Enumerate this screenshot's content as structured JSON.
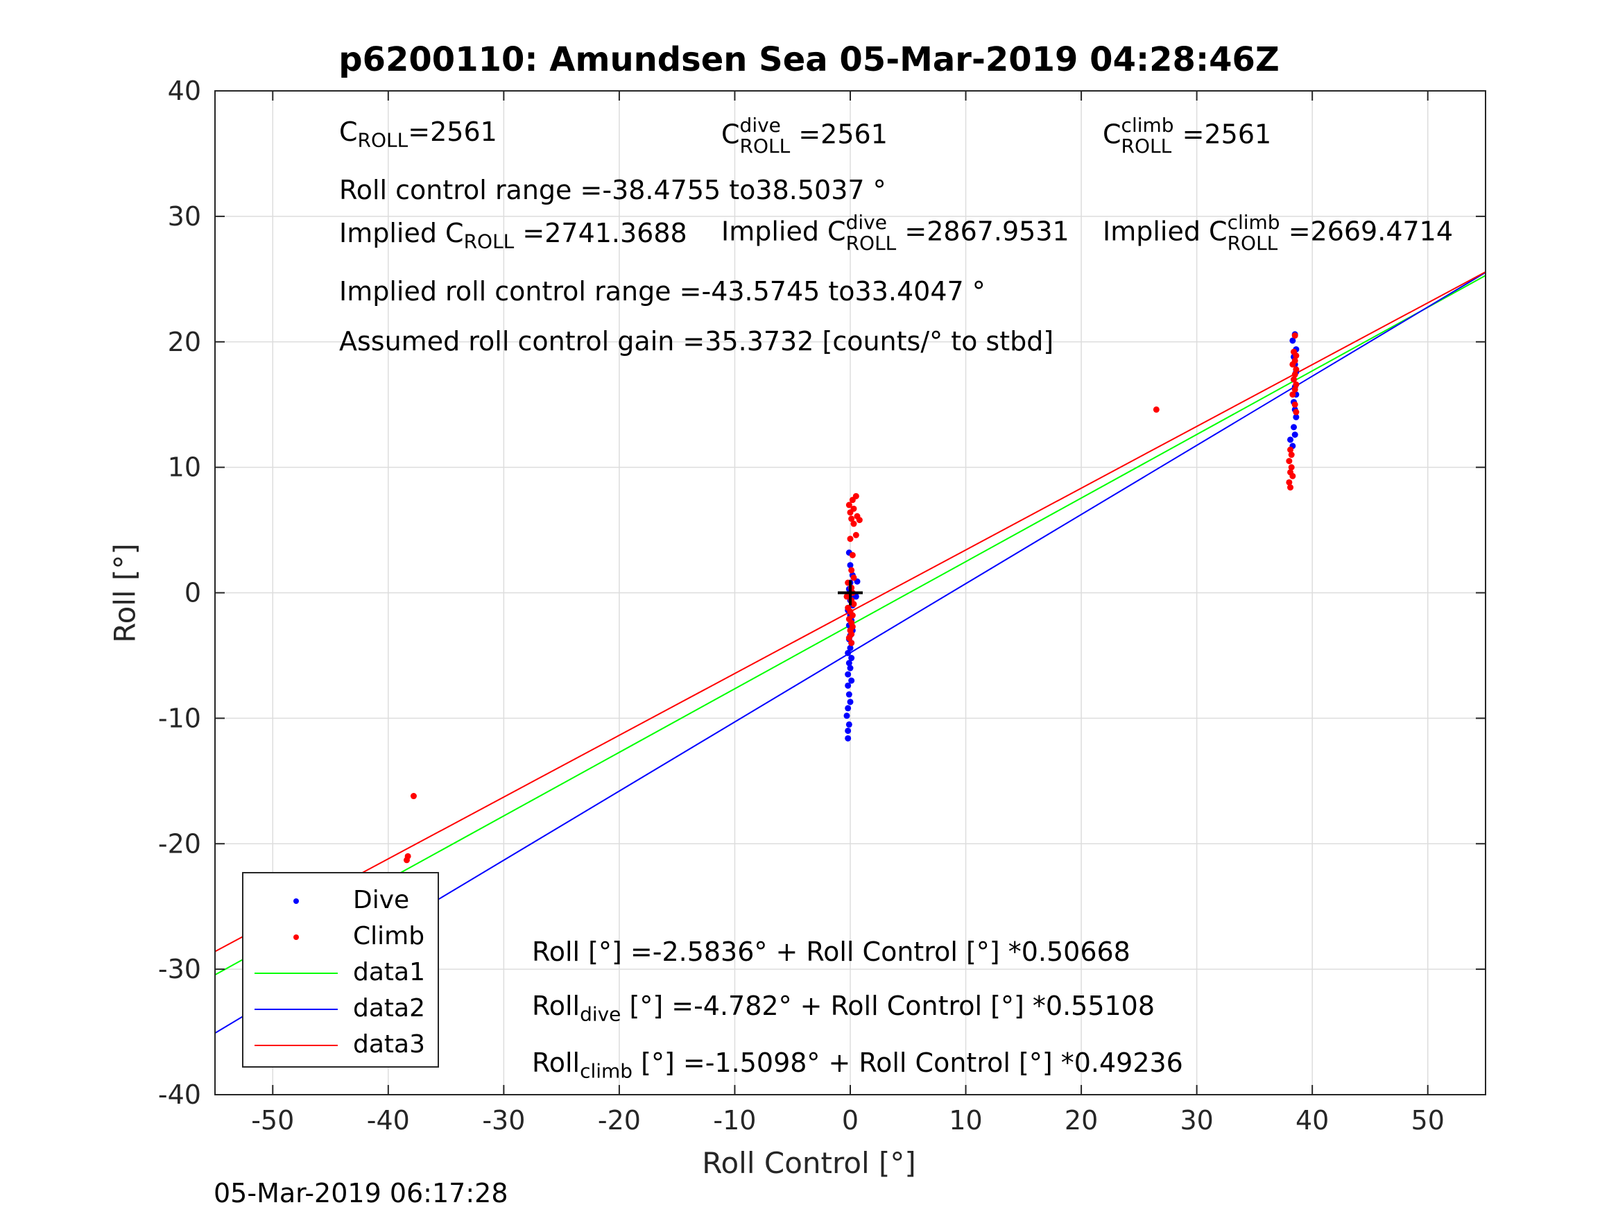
{
  "title": "p6200110: Amundsen Sea 05-Mar-2019 04:28:46Z",
  "timestamp": "05-Mar-2019 06:17:28",
  "annotations": {
    "c_roll": {
      "base": "C",
      "sub": "ROLL",
      "value": "=2561"
    },
    "c_roll_dive": {
      "base": "C",
      "sup": "dive",
      "sub": "ROLL",
      "value": "=2561"
    },
    "c_roll_climb": {
      "base": "C",
      "sup": "climb",
      "sub": "ROLL",
      "value": "=2561"
    },
    "roll_control_range": "Roll control range =-38.4755 to38.5037 °",
    "implied_c_roll": {
      "prefix": "Implied C",
      "sub": "ROLL",
      "value": "=2741.3688"
    },
    "implied_c_roll_dive": {
      "prefix": "Implied C",
      "sup": "dive",
      "sub": "ROLL",
      "value": "=2867.9531"
    },
    "implied_c_roll_climb": {
      "prefix": "Implied C",
      "sup": "climb",
      "sub": "ROLL",
      "value": "=2669.4714"
    },
    "implied_roll_control_range": "Implied roll control range =-43.5745 to33.4047 °",
    "assumed_gain": "Assumed roll control gain =35.3732 [counts/° to stbd]",
    "fit_all": {
      "base": "Roll",
      "sub": "",
      "rest": "[°] =-2.5836° + Roll Control [°] *0.50668"
    },
    "fit_dive": {
      "base": "Roll",
      "sub": "dive",
      "rest": "[°] =-4.782° + Roll Control [°] *0.55108"
    },
    "fit_climb": {
      "base": "Roll",
      "sub": "climb",
      "rest": "[°] =-1.5098° + Roll Control [°] *0.49236"
    }
  },
  "legend": [
    "Dive",
    "Climb",
    "data1",
    "data2",
    "data3"
  ],
  "colors": {
    "dive": "#0000ff",
    "climb": "#ff0000",
    "data1": "#00ff00",
    "data2": "#0000ff",
    "data3": "#ff0000",
    "grid": "#dddddd",
    "axis": "#262626",
    "crosshair": "#000000"
  },
  "chart_data": {
    "type": "scatter",
    "title": "p6200110: Amundsen Sea 05-Mar-2019 04:28:46Z",
    "xlabel": "Roll Control [°]",
    "ylabel": "Roll [°]",
    "xlim": [
      -55,
      55
    ],
    "ylim": [
      -40,
      40
    ],
    "xticks": [
      -50,
      -40,
      -30,
      -20,
      -10,
      0,
      10,
      20,
      30,
      40,
      50
    ],
    "yticks": [
      -40,
      -30,
      -20,
      -10,
      0,
      10,
      20,
      30,
      40
    ],
    "grid": true,
    "legend_position": "bottom-left",
    "crosshair": [
      0,
      0
    ],
    "series": [
      {
        "name": "Dive",
        "kind": "points",
        "color": "#0000ff",
        "points": [
          [
            -0.2,
            -11.6
          ],
          [
            -0.2,
            -11.0
          ],
          [
            -0.1,
            -10.5
          ],
          [
            -0.3,
            -9.8
          ],
          [
            -0.2,
            -9.2
          ],
          [
            0.0,
            -8.7
          ],
          [
            -0.1,
            -8.1
          ],
          [
            -0.2,
            -7.4
          ],
          [
            0.1,
            -7.0
          ],
          [
            -0.2,
            -6.5
          ],
          [
            0.0,
            -6.0
          ],
          [
            -0.1,
            -5.6
          ],
          [
            0.1,
            -5.2
          ],
          [
            -0.2,
            -4.8
          ],
          [
            0.0,
            -4.4
          ],
          [
            0.1,
            -4.0
          ],
          [
            -0.1,
            -3.7
          ],
          [
            0.0,
            -3.4
          ],
          [
            0.2,
            -3.0
          ],
          [
            -0.1,
            -2.6
          ],
          [
            0.1,
            -2.2
          ],
          [
            0.0,
            -1.8
          ],
          [
            -0.2,
            -1.4
          ],
          [
            0.2,
            -1.0
          ],
          [
            0.0,
            -0.6
          ],
          [
            0.1,
            -0.2
          ],
          [
            -0.1,
            0.3
          ],
          [
            0.0,
            0.8
          ],
          [
            0.2,
            1.4
          ],
          [
            0.0,
            2.2
          ],
          [
            -0.1,
            3.2
          ],
          [
            0.6,
            0.9
          ],
          [
            0.5,
            -0.3
          ],
          [
            38.5,
            20.6
          ],
          [
            38.3,
            20.1
          ],
          [
            38.6,
            19.4
          ],
          [
            38.4,
            18.8
          ],
          [
            38.5,
            18.2
          ],
          [
            38.6,
            17.6
          ],
          [
            38.4,
            17.0
          ],
          [
            38.5,
            16.4
          ],
          [
            38.6,
            15.8
          ],
          [
            38.4,
            15.2
          ],
          [
            38.5,
            14.6
          ],
          [
            38.6,
            14.0
          ],
          [
            38.4,
            13.2
          ],
          [
            38.5,
            12.6
          ],
          [
            38.1,
            12.2
          ],
          [
            38.3,
            11.7
          ]
        ]
      },
      {
        "name": "Climb",
        "kind": "points",
        "color": "#ff0000",
        "points": [
          [
            0.5,
            7.7
          ],
          [
            0.2,
            7.4
          ],
          [
            -0.1,
            7.0
          ],
          [
            0.3,
            6.7
          ],
          [
            0.0,
            6.4
          ],
          [
            0.6,
            6.1
          ],
          [
            0.1,
            5.9
          ],
          [
            0.8,
            5.8
          ],
          [
            0.3,
            5.5
          ],
          [
            0.5,
            4.6
          ],
          [
            0.0,
            4.3
          ],
          [
            0.2,
            3.0
          ],
          [
            0.1,
            1.8
          ],
          [
            0.3,
            1.2
          ],
          [
            -0.2,
            0.8
          ],
          [
            0.1,
            0.4
          ],
          [
            0.2,
            0.0
          ],
          [
            -0.3,
            -0.3
          ],
          [
            0.1,
            -0.6
          ],
          [
            0.3,
            -0.9
          ],
          [
            -0.2,
            -1.2
          ],
          [
            0.0,
            -1.5
          ],
          [
            0.2,
            -1.8
          ],
          [
            -0.1,
            -2.1
          ],
          [
            0.1,
            -2.4
          ],
          [
            0.2,
            -2.7
          ],
          [
            0.0,
            -3.0
          ],
          [
            0.1,
            -3.3
          ],
          [
            -0.1,
            -3.6
          ],
          [
            0.1,
            -4.0
          ],
          [
            26.5,
            14.6
          ],
          [
            38.5,
            20.5
          ],
          [
            38.4,
            19.2
          ],
          [
            38.6,
            18.9
          ],
          [
            38.5,
            18.5
          ],
          [
            38.3,
            18.2
          ],
          [
            38.6,
            17.8
          ],
          [
            38.5,
            17.4
          ],
          [
            38.4,
            17.0
          ],
          [
            38.6,
            16.6
          ],
          [
            38.5,
            16.2
          ],
          [
            38.3,
            15.8
          ],
          [
            38.5,
            15.0
          ],
          [
            38.6,
            14.4
          ],
          [
            38.1,
            11.4
          ],
          [
            38.2,
            11.0
          ],
          [
            38.0,
            10.5
          ],
          [
            38.2,
            10.0
          ],
          [
            38.1,
            9.6
          ],
          [
            38.3,
            9.3
          ],
          [
            38.0,
            8.8
          ],
          [
            38.1,
            8.4
          ],
          [
            -37.8,
            -16.2
          ],
          [
            -38.3,
            -21.0
          ],
          [
            -38.4,
            -21.3
          ],
          [
            -38.3,
            -22.6
          ],
          [
            -38.4,
            -23.3
          ],
          [
            -38.3,
            -23.8
          ],
          [
            -38.4,
            -24.2
          ],
          [
            -38.3,
            -24.7
          ]
        ]
      },
      {
        "name": "data1",
        "kind": "line",
        "color": "#00ff00",
        "intercept": -2.5836,
        "slope": 0.50668
      },
      {
        "name": "data2",
        "kind": "line",
        "color": "#0000ff",
        "intercept": -4.782,
        "slope": 0.55108
      },
      {
        "name": "data3",
        "kind": "line",
        "color": "#ff0000",
        "intercept": -1.5098,
        "slope": 0.49236
      }
    ]
  }
}
